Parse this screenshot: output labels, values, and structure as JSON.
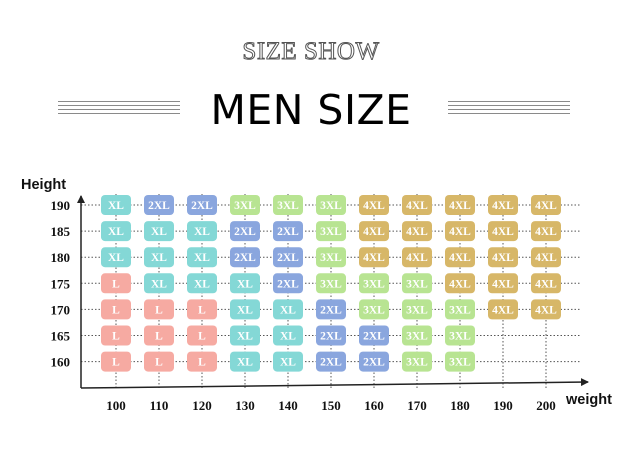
{
  "header": {
    "subtitle": "SIZE SHOW",
    "title": "MEN SIZE"
  },
  "chart_data": {
    "type": "heatmap",
    "xlabel": "weight",
    "ylabel": "Height",
    "x": [
      100,
      110,
      120,
      130,
      140,
      150,
      160,
      170,
      180,
      190,
      200
    ],
    "y": [
      190,
      185,
      180,
      175,
      170,
      165,
      160
    ],
    "grid": true,
    "colors": {
      "L": "#f6aaa2",
      "XL": "#84d8d6",
      "2XL": "#8aa6de",
      "3XL": "#b8e492",
      "4XL": "#d7b768"
    },
    "cells": [
      [
        "XL",
        "2XL",
        "2XL",
        "3XL",
        "3XL",
        "3XL",
        "4XL",
        "4XL",
        "4XL",
        "4XL",
        "4XL"
      ],
      [
        "XL",
        "XL",
        "XL",
        "2XL",
        "2XL",
        "3XL",
        "4XL",
        "4XL",
        "4XL",
        "4XL",
        "4XL"
      ],
      [
        "XL",
        "XL",
        "XL",
        "2XL",
        "2XL",
        "3XL",
        "4XL",
        "4XL",
        "4XL",
        "4XL",
        "4XL"
      ],
      [
        "L",
        "XL",
        "XL",
        "XL",
        "2XL",
        "3XL",
        "3XL",
        "3XL",
        "4XL",
        "4XL",
        "4XL"
      ],
      [
        "L",
        "L",
        "L",
        "XL",
        "XL",
        "2XL",
        "3XL",
        "3XL",
        "3XL",
        "4XL",
        "4XL"
      ],
      [
        "L",
        "L",
        "L",
        "XL",
        "XL",
        "2XL",
        "2XL",
        "3XL",
        "3XL",
        null,
        null
      ],
      [
        "L",
        "L",
        "L",
        "XL",
        "XL",
        "2XL",
        "2XL",
        "3XL",
        "3XL",
        null,
        null
      ]
    ]
  }
}
